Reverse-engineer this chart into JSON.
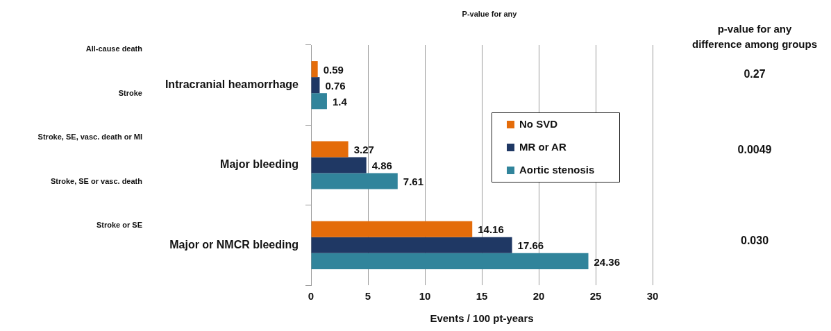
{
  "chart_data": {
    "type": "bar",
    "orientation": "horizontal",
    "categories": [
      "Intracranial heamorrhage",
      "Major bleeding",
      "Major or NMCR bleeding"
    ],
    "series": [
      {
        "name": "No SVD",
        "color": "#e46c0a",
        "values": [
          0.59,
          3.27,
          14.16
        ]
      },
      {
        "name": "MR or AR",
        "color": "#1f3864",
        "values": [
          0.76,
          4.86,
          17.66
        ]
      },
      {
        "name": "Aortic stenosis",
        "color": "#31849b",
        "values": [
          1.4,
          7.61,
          24.36
        ]
      }
    ],
    "xlabel": "Events / 100 pt-years",
    "xlim": [
      0,
      30
    ],
    "xticks": [
      0,
      5,
      10,
      15,
      20,
      25,
      30
    ],
    "grid": "x",
    "legend": "right",
    "data_labels": true,
    "annotations": [
      "P-value for any",
      "p-value for any difference among groups",
      "0.27",
      "0.0049",
      "0.030",
      "All-cause death",
      "Stroke",
      "Stroke, SE, vasc. death or MI",
      "Stroke, SE or vasc. death",
      "Stroke or SE"
    ]
  }
}
